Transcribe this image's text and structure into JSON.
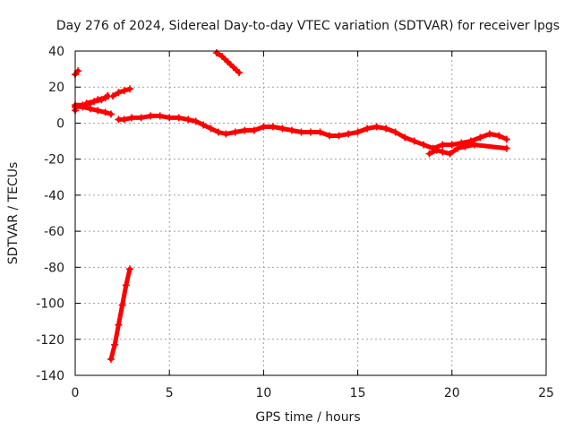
{
  "chart_data": {
    "type": "scatter",
    "title": "Day 276 of 2024, Sidereal Day-to-day VTEC variation (SDTVAR) for receiver lpgs",
    "xlabel": "GPS time / hours",
    "ylabel": "SDTVAR / TECUs",
    "xlim": [
      0,
      25
    ],
    "ylim": [
      -140,
      40
    ],
    "x_ticks": [
      0,
      5,
      10,
      15,
      20,
      25
    ],
    "y_ticks": [
      40,
      20,
      0,
      -20,
      -40,
      -60,
      -80,
      -100,
      -120,
      -140
    ],
    "grid": true,
    "marker": "plus",
    "color": "#ff0000",
    "series": [
      {
        "name": "arc-0-a",
        "points": [
          [
            0.0,
            27
          ],
          [
            0.15,
            29
          ]
        ]
      },
      {
        "name": "arc-0-b",
        "points": [
          [
            0.0,
            7
          ],
          [
            0.0,
            10
          ],
          [
            0.4,
            10
          ],
          [
            0.8,
            11
          ],
          [
            1.2,
            13
          ],
          [
            1.6,
            14
          ],
          [
            1.75,
            15
          ]
        ]
      },
      {
        "name": "arc-0-c",
        "points": [
          [
            0.0,
            9
          ],
          [
            0.4,
            9
          ],
          [
            0.8,
            8
          ],
          [
            1.2,
            7
          ],
          [
            1.6,
            6
          ],
          [
            1.9,
            5
          ]
        ]
      },
      {
        "name": "arc-1",
        "points": [
          [
            0.6,
            11
          ],
          [
            1.0,
            12
          ],
          [
            1.4,
            13
          ],
          [
            1.7,
            15
          ]
        ]
      },
      {
        "name": "arc-2",
        "points": [
          [
            2.0,
            15
          ],
          [
            2.3,
            17
          ],
          [
            2.6,
            18
          ],
          [
            2.9,
            19
          ]
        ]
      },
      {
        "name": "arc-3",
        "points": [
          [
            1.9,
            -131
          ],
          [
            2.1,
            -123
          ],
          [
            2.3,
            -112
          ],
          [
            2.5,
            -101
          ],
          [
            2.7,
            -90
          ],
          [
            2.9,
            -81
          ]
        ]
      },
      {
        "name": "arc-4",
        "points": [
          [
            7.5,
            39
          ],
          [
            7.8,
            37
          ],
          [
            8.1,
            34
          ],
          [
            8.4,
            31
          ],
          [
            8.7,
            28
          ]
        ]
      },
      {
        "name": "main-trace",
        "points": [
          [
            2.3,
            2
          ],
          [
            2.6,
            2
          ],
          [
            3.0,
            3
          ],
          [
            3.5,
            3
          ],
          [
            4.0,
            4
          ],
          [
            4.5,
            4
          ],
          [
            5.0,
            3
          ],
          [
            5.5,
            3
          ],
          [
            6.0,
            2
          ],
          [
            6.4,
            1
          ],
          [
            6.8,
            -1
          ],
          [
            7.2,
            -3
          ],
          [
            7.6,
            -5
          ],
          [
            8.0,
            -6
          ],
          [
            8.5,
            -5
          ],
          [
            9.0,
            -4
          ],
          [
            9.5,
            -4
          ],
          [
            10.0,
            -2
          ],
          [
            10.5,
            -2
          ],
          [
            11.0,
            -3
          ],
          [
            11.5,
            -4
          ],
          [
            12.0,
            -5
          ],
          [
            12.5,
            -5
          ],
          [
            13.0,
            -5
          ],
          [
            13.5,
            -7
          ],
          [
            14.0,
            -7
          ],
          [
            14.5,
            -6
          ],
          [
            15.0,
            -5
          ],
          [
            15.5,
            -3
          ],
          [
            16.0,
            -2
          ],
          [
            16.5,
            -3
          ],
          [
            17.0,
            -5
          ],
          [
            17.5,
            -8
          ],
          [
            18.0,
            -10
          ],
          [
            18.5,
            -12
          ],
          [
            19.0,
            -14
          ],
          [
            19.5,
            -12
          ],
          [
            20.0,
            -12
          ],
          [
            20.5,
            -11
          ],
          [
            21.0,
            -10
          ],
          [
            21.5,
            -8
          ],
          [
            22.0,
            -6
          ],
          [
            22.5,
            -7
          ],
          [
            22.9,
            -9
          ]
        ]
      },
      {
        "name": "scatter-tail",
        "points": [
          [
            18.8,
            -17
          ],
          [
            19.2,
            -15
          ],
          [
            19.5,
            -16
          ],
          [
            19.9,
            -17
          ],
          [
            20.3,
            -14
          ],
          [
            20.7,
            -13
          ],
          [
            21.2,
            -12
          ],
          [
            22.9,
            -14
          ]
        ]
      }
    ]
  }
}
